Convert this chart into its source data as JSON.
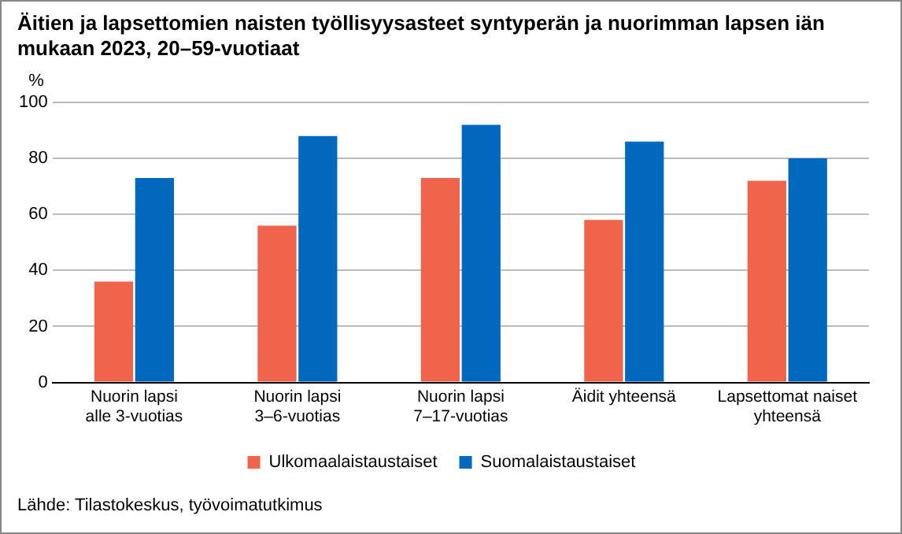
{
  "chart_data": {
    "type": "bar",
    "title": "Äitien ja lapsettomien naisten työllisyysasteet syntyperän ja nuorimman lapsen iän mukaan 2023, 20–59-vuotiaat",
    "ylabel": "%",
    "categories": [
      "Nuorin lapsi\nalle 3-vuotias",
      "Nuorin lapsi\n3–6-vuotias",
      "Nuorin lapsi\n7–17-vuotias",
      "Äidit yhteensä",
      "Lapsettomat naiset\nyhteensä"
    ],
    "series": [
      {
        "name": "Ulkomaalaistaustaiset",
        "color": "#f0644c",
        "values": [
          36,
          56,
          73,
          58,
          72
        ]
      },
      {
        "name": "Suomalaistaustaiset",
        "color": "#0069be",
        "values": [
          73,
          88,
          92,
          86,
          80
        ]
      }
    ],
    "ylim": [
      0,
      100
    ],
    "yticks": [
      0,
      20,
      40,
      60,
      80,
      100
    ],
    "grid": "y",
    "legend": "bottom",
    "annotations": [
      "Lähde: Tilastokeskus, työvoimatutkimus"
    ]
  }
}
